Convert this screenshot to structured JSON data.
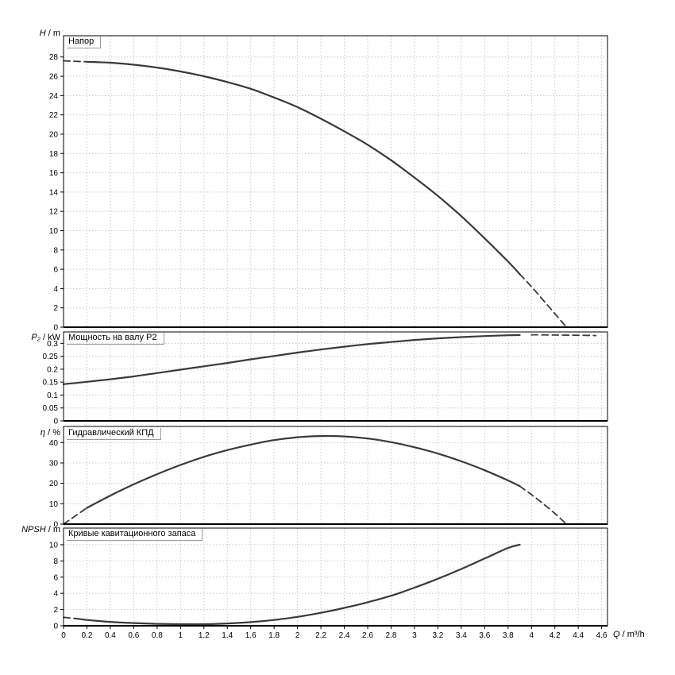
{
  "colors": {
    "background": "#ffffff",
    "curve": "#3a3a3a",
    "grid": "#c9c9c9",
    "frame": "#000000",
    "text": "#000000"
  },
  "axes": {
    "x": {
      "label_symbol": "Q",
      "label_unit": "/ m³/h",
      "lim": [
        0,
        4.65
      ],
      "tick_values": [
        0,
        0.2,
        0.4,
        0.6,
        0.8,
        1,
        1.2,
        1.4,
        1.6,
        1.8,
        2,
        2.2,
        2.4,
        2.6,
        2.8,
        3,
        3.2,
        3.4,
        3.6,
        3.8,
        4,
        4.2,
        4.4,
        4.6
      ],
      "tick_labels": [
        "0",
        "0.2",
        "0.4",
        "0.6",
        "0.8",
        "1",
        "1.2",
        "1.4",
        "1.6",
        "1.8",
        "2",
        "2.2",
        "2.4",
        "2.6",
        "2.8",
        "3",
        "3.2",
        "3.4",
        "3.6",
        "3.8",
        "4",
        "4.2",
        "4.4",
        "4.6"
      ]
    }
  },
  "chart_data": [
    {
      "type": "line",
      "title": "Напор",
      "ylabel_symbol": "H",
      "ylabel_unit": "/ m",
      "ylim": [
        0,
        30.2
      ],
      "grid": true,
      "ytick_values": [
        0,
        2,
        4,
        6,
        8,
        10,
        12,
        14,
        16,
        18,
        20,
        22,
        24,
        26,
        28
      ],
      "ytick_labels": [
        "0",
        "2",
        "4",
        "6",
        "8",
        "10",
        "12",
        "14",
        "16",
        "18",
        "20",
        "22",
        "24",
        "26",
        "28"
      ],
      "series": [
        {
          "name": "head-curve-dashed-start",
          "style": "dashed",
          "points": [
            [
              0,
              27.6
            ],
            [
              0.2,
              27.5
            ]
          ]
        },
        {
          "name": "head-curve",
          "style": "solid",
          "points": [
            [
              0.2,
              27.5
            ],
            [
              0.4,
              27.4
            ],
            [
              0.6,
              27.2
            ],
            [
              0.8,
              26.9
            ],
            [
              1,
              26.5
            ],
            [
              1.2,
              26
            ],
            [
              1.4,
              25.4
            ],
            [
              1.6,
              24.7
            ],
            [
              1.8,
              23.8
            ],
            [
              2,
              22.8
            ],
            [
              2.2,
              21.6
            ],
            [
              2.4,
              20.3
            ],
            [
              2.6,
              18.9
            ],
            [
              2.8,
              17.3
            ],
            [
              3,
              15.5
            ],
            [
              3.2,
              13.6
            ],
            [
              3.4,
              11.5
            ],
            [
              3.6,
              9.2
            ],
            [
              3.8,
              6.8
            ],
            [
              3.9,
              5.5
            ]
          ]
        },
        {
          "name": "head-curve-dashed-end",
          "style": "dashed",
          "points": [
            [
              3.9,
              5.5
            ],
            [
              4,
              4.2
            ],
            [
              4.1,
              2.8
            ],
            [
              4.2,
              1.4
            ],
            [
              4.3,
              0
            ]
          ]
        }
      ]
    },
    {
      "type": "line",
      "title": "Мощность на валу P2",
      "ylabel_symbol": "P₂",
      "ylabel_unit": "/ kW",
      "ylim": [
        0,
        0.344
      ],
      "grid": true,
      "ytick_values": [
        0,
        0.05,
        0.1,
        0.15,
        0.2,
        0.25,
        0.3
      ],
      "ytick_labels": [
        "0",
        "0.05",
        "0.1",
        "0.15",
        "0.2",
        "0.25",
        "0.3"
      ],
      "series": [
        {
          "name": "power-curve",
          "style": "solid",
          "points": [
            [
              0,
              0.142
            ],
            [
              0.2,
              0.151
            ],
            [
              0.4,
              0.161
            ],
            [
              0.6,
              0.172
            ],
            [
              0.8,
              0.185
            ],
            [
              1,
              0.198
            ],
            [
              1.2,
              0.211
            ],
            [
              1.4,
              0.224
            ],
            [
              1.6,
              0.238
            ],
            [
              1.8,
              0.251
            ],
            [
              2,
              0.264
            ],
            [
              2.2,
              0.276
            ],
            [
              2.4,
              0.287
            ],
            [
              2.6,
              0.297
            ],
            [
              2.8,
              0.305
            ],
            [
              3,
              0.313
            ],
            [
              3.2,
              0.319
            ],
            [
              3.4,
              0.324
            ],
            [
              3.6,
              0.328
            ],
            [
              3.8,
              0.331
            ],
            [
              3.9,
              0.332
            ]
          ]
        },
        {
          "name": "power-curve-dashed-end",
          "style": "dashed",
          "points": [
            [
              4,
              0.333
            ],
            [
              4.2,
              0.332
            ],
            [
              4.4,
              0.331
            ],
            [
              4.55,
              0.33
            ]
          ]
        }
      ]
    },
    {
      "type": "line",
      "title": "Гидравлический КПД",
      "ylabel_symbol": "η",
      "ylabel_unit": "/ %",
      "ylim": [
        0,
        47.9
      ],
      "grid": true,
      "ytick_values": [
        0,
        10,
        20,
        30,
        40
      ],
      "ytick_labels": [
        "0",
        "10",
        "20",
        "30",
        "40"
      ],
      "series": [
        {
          "name": "efficiency-dashed-start",
          "style": "dashed",
          "points": [
            [
              0,
              0
            ],
            [
              0.2,
              8
            ]
          ]
        },
        {
          "name": "efficiency-curve",
          "style": "solid",
          "points": [
            [
              0.2,
              8
            ],
            [
              0.4,
              14
            ],
            [
              0.6,
              19.5
            ],
            [
              0.8,
              24.5
            ],
            [
              1,
              29
            ],
            [
              1.2,
              33
            ],
            [
              1.4,
              36.3
            ],
            [
              1.6,
              39
            ],
            [
              1.8,
              41.2
            ],
            [
              2,
              42.6
            ],
            [
              2.2,
              43.2
            ],
            [
              2.4,
              43
            ],
            [
              2.6,
              42
            ],
            [
              2.8,
              40.2
            ],
            [
              3,
              37.7
            ],
            [
              3.2,
              34.6
            ],
            [
              3.4,
              30.8
            ],
            [
              3.6,
              26.4
            ],
            [
              3.8,
              21.4
            ],
            [
              3.9,
              18.6
            ]
          ]
        },
        {
          "name": "efficiency-dashed-end",
          "style": "dashed",
          "points": [
            [
              3.9,
              18.6
            ],
            [
              4,
              14.5
            ],
            [
              4.1,
              10
            ],
            [
              4.2,
              5.2
            ],
            [
              4.3,
              0
            ]
          ]
        }
      ]
    },
    {
      "type": "line",
      "title": "Кривые кавитационного запаса",
      "ylabel_symbol": "NPSH",
      "ylabel_unit": "/ m",
      "ylim": [
        0,
        12.05
      ],
      "grid": true,
      "ytick_values": [
        0,
        2,
        4,
        6,
        8,
        10
      ],
      "ytick_labels": [
        "0",
        "2",
        "4",
        "6",
        "8",
        "10"
      ],
      "series": [
        {
          "name": "npsh-dashed-start",
          "style": "dashed",
          "points": [
            [
              0,
              1.05
            ],
            [
              0.1,
              0.9
            ]
          ]
        },
        {
          "name": "npsh-curve",
          "style": "solid",
          "points": [
            [
              0.1,
              0.9
            ],
            [
              0.2,
              0.72
            ],
            [
              0.4,
              0.48
            ],
            [
              0.6,
              0.33
            ],
            [
              0.8,
              0.24
            ],
            [
              1,
              0.2
            ],
            [
              1.2,
              0.2
            ],
            [
              1.4,
              0.28
            ],
            [
              1.6,
              0.45
            ],
            [
              1.8,
              0.72
            ],
            [
              2,
              1.1
            ],
            [
              2.2,
              1.6
            ],
            [
              2.4,
              2.2
            ],
            [
              2.6,
              2.9
            ],
            [
              2.8,
              3.7
            ],
            [
              3,
              4.7
            ],
            [
              3.2,
              5.8
            ],
            [
              3.4,
              7
            ],
            [
              3.6,
              8.3
            ],
            [
              3.8,
              9.6
            ],
            [
              3.9,
              10
            ]
          ]
        }
      ]
    }
  ]
}
